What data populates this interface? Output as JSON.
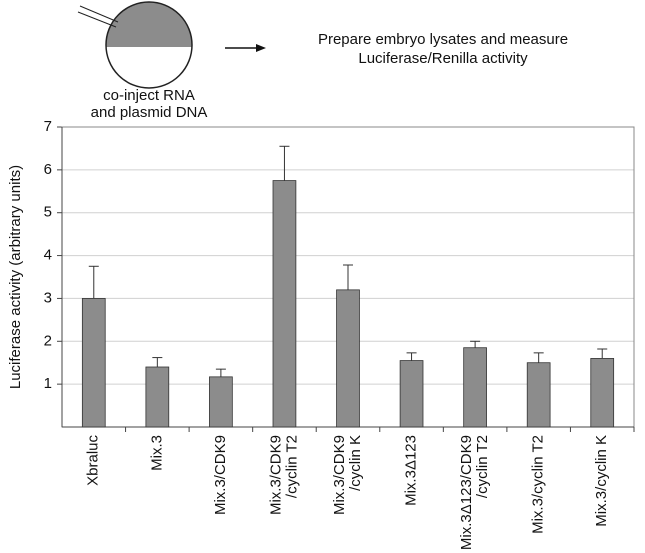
{
  "diagram": {
    "caption": [
      "co-inject RNA",
      "and plasmid DNA"
    ],
    "step": [
      "Prepare embryo lysates and measure",
      "Luciferase/Renilla activity"
    ]
  },
  "chart_data": {
    "type": "bar",
    "y_label": "Luciferase activity (arbitrary units)",
    "categories": [
      [
        "Xbraluc"
      ],
      [
        "Mix.3"
      ],
      [
        "Mix.3/CDK9"
      ],
      [
        "Mix.3/CDK9",
        "/cyclin T2"
      ],
      [
        "Mix.3/CDK9",
        "/cyclin K"
      ],
      [
        "Mix.3Δ123"
      ],
      [
        "Mix.3Δ123/CDK9",
        "/cyclin T2"
      ],
      [
        "Mix.3/cyclin T2"
      ],
      [
        "Mix.3/cyclin K"
      ]
    ],
    "values": [
      3.0,
      1.4,
      1.17,
      5.75,
      3.2,
      1.55,
      1.85,
      1.5,
      1.6
    ],
    "errors": [
      0.75,
      0.22,
      0.18,
      0.8,
      0.58,
      0.18,
      0.15,
      0.23,
      0.22
    ],
    "color": "#8c8c8c",
    "ylim": [
      0,
      7
    ],
    "yticks": [
      1,
      2,
      3,
      4,
      5,
      6,
      7
    ],
    "grid": true
  }
}
